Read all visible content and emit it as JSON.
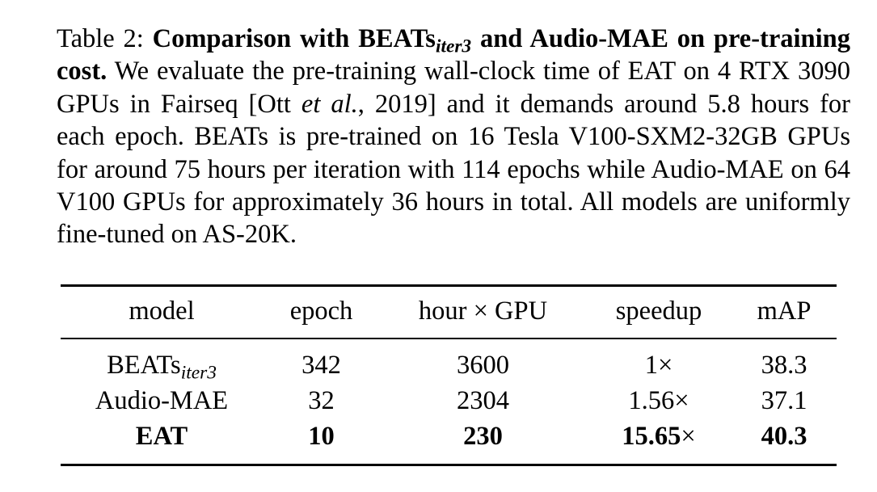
{
  "caption": {
    "label": "Table 2:",
    "bold_title_prefix": "Comparison with BEATs",
    "bold_title_sub": "iter3",
    "bold_title_suffix": "and Audio-MAE on pre-training cost.",
    "text_before_etal": "We evaluate the pre-training wall-clock time of EAT on 4 RTX 3090 GPUs in Fairseq [Ott",
    "etal": "et al.",
    "text_after_etal": ", 2019] and it demands around 5.8 hours for each epoch. BEATs is pre-trained on 16 Tesla V100-SXM2-32GB GPUs for around 75 hours per iteration with 114 epochs while Audio-MAE on 64 V100 GPUs for approximately 36 hours in total. All models are uniformly fine-tuned on AS-20K."
  },
  "table": {
    "headers": [
      "model",
      "epoch",
      "hour × GPU",
      "speedup",
      "mAP"
    ],
    "rows": [
      {
        "model": "BEATs",
        "model_sub": "iter3",
        "epoch": "342",
        "hour_gpu": "3600",
        "speedup": "1",
        "speedup_suffix": "×",
        "map": "38.3",
        "bold": false
      },
      {
        "model": "Audio-MAE",
        "model_sub": "",
        "epoch": "32",
        "hour_gpu": "2304",
        "speedup": "1.56",
        "speedup_suffix": "×",
        "map": "37.1",
        "bold": false
      },
      {
        "model": "EAT",
        "model_sub": "",
        "epoch": "10",
        "hour_gpu": "230",
        "speedup": "15.65",
        "speedup_suffix": "×",
        "map": "40.3",
        "bold": true
      }
    ]
  }
}
